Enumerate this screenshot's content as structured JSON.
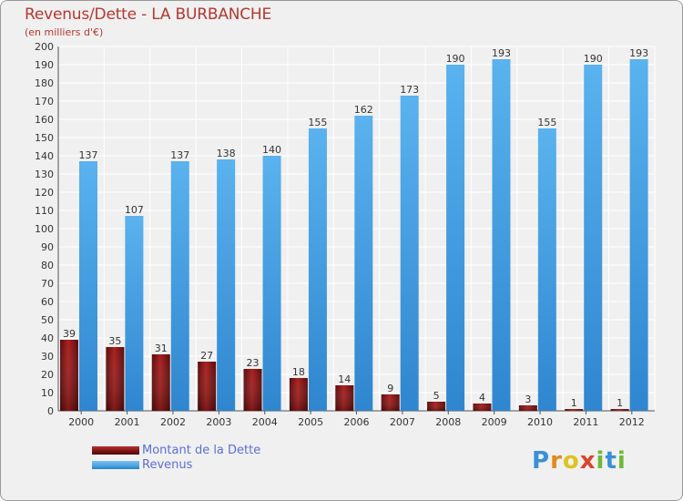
{
  "title": "Revenus/Dette - LA BURBANCHE",
  "subtitle": "(en milliers d'€)",
  "colors": {
    "debt": "#7a1212",
    "revenue": "#4aa3e3",
    "title": "#b5372f",
    "legend_text": "#5a6fd6"
  },
  "legend": {
    "debt_label": "Montant de la Dette",
    "revenue_label": "Revenus"
  },
  "logo": {
    "text": "Proxiti"
  },
  "chart_data": {
    "type": "bar",
    "title": "Revenus/Dette - LA BURBANCHE",
    "ylabel": "(en milliers d'€)",
    "xlabel": "",
    "ylim": [
      0,
      200
    ],
    "yticks": [
      0,
      10,
      20,
      30,
      40,
      50,
      60,
      70,
      80,
      90,
      100,
      110,
      120,
      130,
      140,
      150,
      160,
      170,
      180,
      190,
      200
    ],
    "grid": true,
    "legend_position": "bottom-left",
    "categories": [
      "2000",
      "2001",
      "2002",
      "2003",
      "2004",
      "2005",
      "2006",
      "2007",
      "2008",
      "2009",
      "2010",
      "2011",
      "2012"
    ],
    "series": [
      {
        "name": "Montant de la Dette",
        "values": [
          39,
          35,
          31,
          27,
          23,
          18,
          14,
          9,
          5,
          4,
          3,
          1,
          1
        ]
      },
      {
        "name": "Revenus",
        "values": [
          137,
          107,
          137,
          138,
          140,
          155,
          162,
          173,
          190,
          193,
          155,
          190,
          193
        ]
      }
    ]
  }
}
